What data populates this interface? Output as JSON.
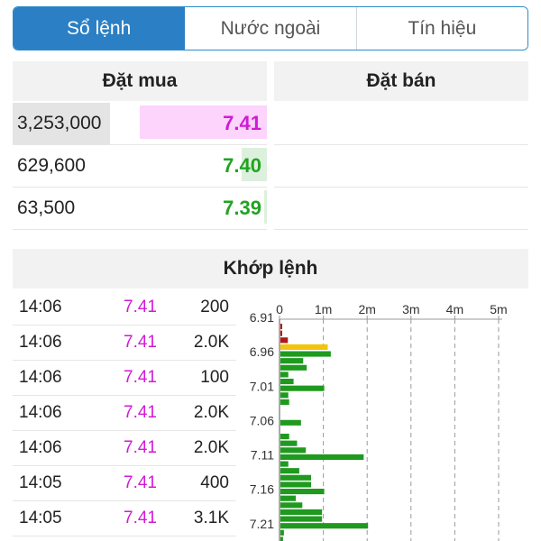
{
  "tabs": [
    {
      "label": "Sổ lệnh",
      "active": true
    },
    {
      "label": "Nước ngoài",
      "active": false
    },
    {
      "label": "Tín hiệu",
      "active": false
    }
  ],
  "order_book": {
    "buy_header": "Đặt mua",
    "sell_header": "Đặt bán",
    "bids": [
      {
        "volume": "3,253,000",
        "price": "7.41",
        "price_color": "#d21ad6",
        "bar_color": "#fcd4fc",
        "fill": 0.5
      },
      {
        "volume": "629,600",
        "price": "7.40",
        "price_color": "#22a322",
        "bar_color": "#ddf0dd",
        "fill": 0.1
      },
      {
        "volume": "63,500",
        "price": "7.39",
        "price_color": "#22a322",
        "bar_color": "#ddf0dd",
        "fill": 0.01
      }
    ]
  },
  "trades_header": "Khớp lệnh",
  "trades": [
    {
      "time": "14:06",
      "price": "7.41",
      "volume": "200"
    },
    {
      "time": "14:06",
      "price": "7.41",
      "volume": "2.0K"
    },
    {
      "time": "14:06",
      "price": "7.41",
      "volume": "100"
    },
    {
      "time": "14:06",
      "price": "7.41",
      "volume": "2.0K"
    },
    {
      "time": "14:06",
      "price": "7.41",
      "volume": "2.0K"
    },
    {
      "time": "14:05",
      "price": "7.41",
      "volume": "400"
    },
    {
      "time": "14:05",
      "price": "7.41",
      "volume": "3.1K"
    }
  ],
  "colors": {
    "tab_active": "#2b7fc4",
    "price_up": "#22a322",
    "price_ref": "#d21ad6",
    "bar_green": "#1f9a1f",
    "bar_red": "#b01818",
    "bar_ref": "#f2c40c"
  },
  "chart_data": {
    "type": "bar",
    "orientation": "horizontal",
    "x_ticks": [
      "0",
      "1m",
      "2m",
      "3m",
      "4m",
      "5m"
    ],
    "xlim": [
      0,
      5000000
    ],
    "y_tick_labels": [
      "6.91",
      "6.96",
      "7.01",
      "7.06",
      "7.11",
      "7.16",
      "7.21"
    ],
    "grid": true,
    "prices": [
      6.91,
      6.92,
      6.93,
      6.94,
      6.95,
      6.96,
      6.97,
      6.98,
      6.99,
      7.0,
      7.01,
      7.02,
      7.03,
      7.04,
      7.05,
      7.06,
      7.07,
      7.08,
      7.09,
      7.1,
      7.11,
      7.12,
      7.13,
      7.14,
      7.15,
      7.16,
      7.17,
      7.18,
      7.19,
      7.2,
      7.21,
      7.22
    ],
    "volumes": [
      30000,
      30000,
      170000,
      1080000,
      1150000,
      520000,
      600000,
      180000,
      300000,
      1000000,
      180000,
      200000,
      0,
      0,
      470000,
      0,
      200000,
      380000,
      580000,
      1900000,
      180000,
      430000,
      700000,
      700000,
      1000000,
      350000,
      500000,
      950000,
      950000,
      2000000,
      80000,
      60000
    ],
    "bar_colors": [
      "red",
      "red",
      "red",
      "ref",
      "green",
      "green",
      "green",
      "green",
      "green",
      "green",
      "green",
      "green",
      "green",
      "green",
      "green",
      "green",
      "green",
      "green",
      "green",
      "green",
      "green",
      "green",
      "green",
      "green",
      "green",
      "green",
      "green",
      "green",
      "green",
      "green",
      "green",
      "green"
    ]
  }
}
